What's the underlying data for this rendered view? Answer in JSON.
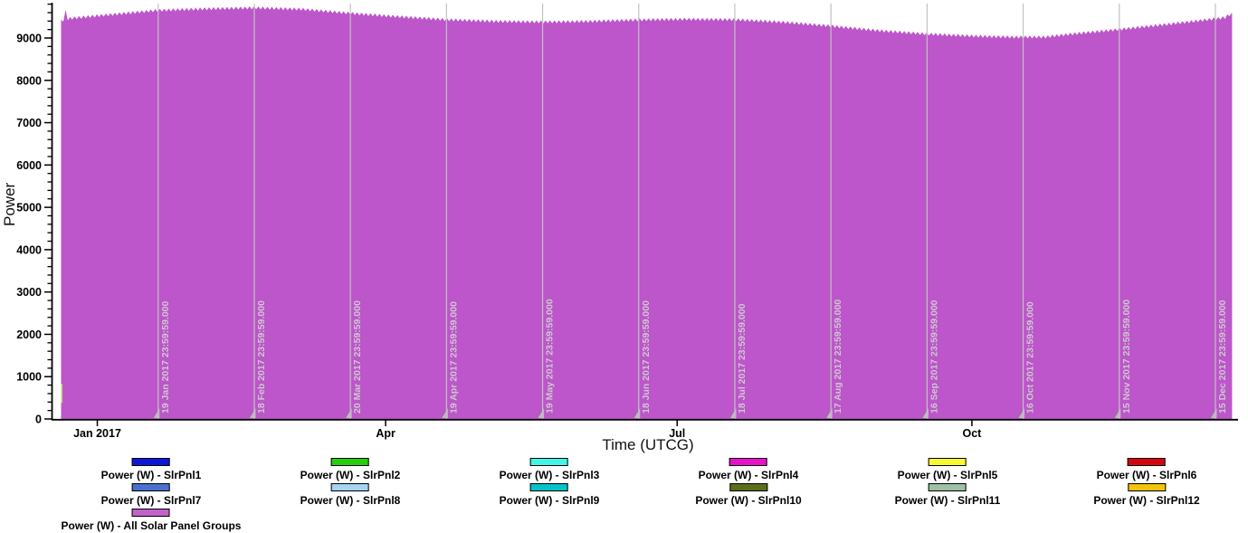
{
  "chart_data": {
    "type": "area",
    "title": "",
    "xlabel": "Time (UTCG)",
    "ylabel": "Power",
    "ylim": [
      0,
      9815
    ],
    "x_range_days": [
      -11.3,
      354.2
    ],
    "fill_color": "#bd55cb",
    "gridline_color": "#c2c2c2",
    "gridline_marker_color": "#bdbdbd",
    "date_label_color": "#cbcbcb",
    "axis_color": "#000000",
    "y_ticks_major": [
      0,
      1000,
      2000,
      3000,
      4000,
      5000,
      6000,
      7000,
      8000,
      9000
    ],
    "y_minor_step": 200,
    "y_minor_max": 9800,
    "x_axis_ticks": [
      {
        "label": "Jan 2017",
        "day": 0
      },
      {
        "label": "Apr",
        "day": 90
      },
      {
        "label": "Jul",
        "day": 181
      },
      {
        "label": "Oct",
        "day": 273
      }
    ],
    "gridline_dates": [
      {
        "label": "19 Jan 2017 23:59:59.000",
        "day": 19
      },
      {
        "label": "18 Feb 2017 23:59:59.000",
        "day": 49
      },
      {
        "label": "20 Mar 2017 23:59:59.000",
        "day": 79
      },
      {
        "label": "19 Apr 2017 23:59:59.000",
        "day": 109
      },
      {
        "label": "19 May 2017 23:59:59.000",
        "day": 139
      },
      {
        "label": "18 Jun 2017 23:59:59.000",
        "day": 169
      },
      {
        "label": "18 Jul 2017 23:59:59.000",
        "day": 199
      },
      {
        "label": "17 Aug 2017 23:59:59.000",
        "day": 229
      },
      {
        "label": "16 Sep 2017 23:59:59.000",
        "day": 259
      },
      {
        "label": "16 Oct 2017 23:59:59.000",
        "day": 289
      },
      {
        "label": "15 Nov 2017 23:59:59.000",
        "day": 319
      },
      {
        "label": "15 Dec 2017 23:59:59.000",
        "day": 349
      }
    ],
    "visible_series": "Power (W) - All Solar Panel Groups",
    "envelope_day_watts": [
      [
        -11.3,
        9430
      ],
      [
        -10.3,
        9470
      ],
      [
        -9.9,
        9665
      ],
      [
        -9.5,
        9480
      ],
      [
        -8,
        9505
      ],
      [
        -4,
        9530
      ],
      [
        0,
        9560
      ],
      [
        10,
        9630
      ],
      [
        19,
        9690
      ],
      [
        34,
        9725
      ],
      [
        49,
        9750
      ],
      [
        64,
        9715
      ],
      [
        79,
        9620
      ],
      [
        94,
        9540
      ],
      [
        109,
        9470
      ],
      [
        124,
        9430
      ],
      [
        139,
        9415
      ],
      [
        154,
        9430
      ],
      [
        169,
        9465
      ],
      [
        184,
        9480
      ],
      [
        199,
        9470
      ],
      [
        214,
        9410
      ],
      [
        229,
        9320
      ],
      [
        244,
        9210
      ],
      [
        259,
        9130
      ],
      [
        274,
        9080
      ],
      [
        286,
        9058
      ],
      [
        296,
        9060
      ],
      [
        304,
        9130
      ],
      [
        319,
        9240
      ],
      [
        334,
        9360
      ],
      [
        349,
        9490
      ],
      [
        352,
        9520
      ],
      [
        353.3,
        9590
      ],
      [
        354.2,
        9590
      ]
    ],
    "noise_watts": 70,
    "edge_artifact": {
      "color": "#c2d178",
      "day": -11.3,
      "watts_top": 830,
      "watts_bottom": 380
    }
  },
  "legend": {
    "items": [
      {
        "label": "Power (W) - SlrPnl1",
        "color": "#0b16d6"
      },
      {
        "label": "Power (W) - SlrPnl2",
        "color": "#25cf0c"
      },
      {
        "label": "Power (W) - SlrPnl3",
        "color": "#3ff6e7"
      },
      {
        "label": "Power (W) - SlrPnl4",
        "color": "#e711c9"
      },
      {
        "label": "Power (W) - SlrPnl5",
        "color": "#f8f833"
      },
      {
        "label": "Power (W) - SlrPnl6",
        "color": "#d6070c"
      },
      {
        "label": "Power (W) - SlrPnl7",
        "color": "#4a71cf"
      },
      {
        "label": "Power (W) - SlrPnl8",
        "color": "#a6d4f2"
      },
      {
        "label": "Power (W) - SlrPnl9",
        "color": "#06c3c9"
      },
      {
        "label": "Power (W) - SlrPnl10",
        "color": "#5c6e1c"
      },
      {
        "label": "Power (W) - SlrPnl11",
        "color": "#9fc0a5"
      },
      {
        "label": "Power (W) - SlrPnl12",
        "color": "#f2c40c"
      },
      {
        "label": "Power (W) - All Solar Panel Groups",
        "color": "#c263c9"
      }
    ]
  }
}
